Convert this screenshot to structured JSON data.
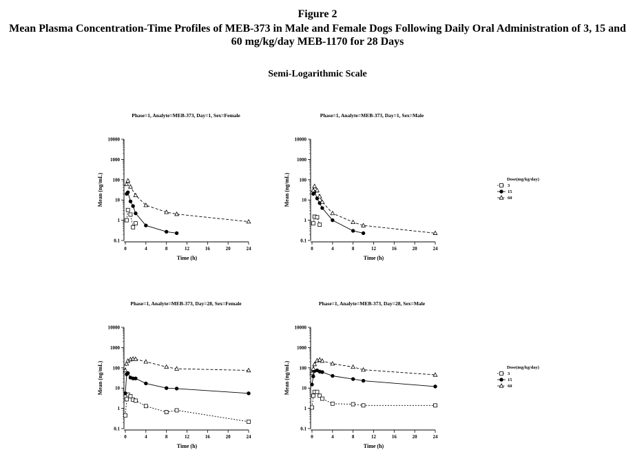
{
  "figure": {
    "number": "Figure 2",
    "title": "Mean Plasma Concentration-Time Profiles of MEB-373 in Male and Female Dogs Following Daily Oral Administration of 3, 15 and 60 mg/kg/day MEB-1170 for 28 Days",
    "subtitle": "Semi-Logarithmic Scale"
  },
  "legend": {
    "title": "Dose(mg/kg/day)",
    "entries": [
      {
        "label": "3",
        "marker": "square-open",
        "dash": "short"
      },
      {
        "label": "15",
        "marker": "circle-filled",
        "dash": "solid"
      },
      {
        "label": "60",
        "marker": "triangle-open",
        "dash": "dashed"
      }
    ]
  },
  "chart_data": [
    {
      "type": "line",
      "title": "Phase=1, Analyte=MEB-373, Day=1, Sex=Female",
      "xlabel": "Time (h)",
      "ylabel": "Mean (ng/mL)",
      "yscale": "log",
      "xlim": [
        0,
        24
      ],
      "ylim": [
        0.1,
        10000
      ],
      "xticks": [
        "0",
        "4",
        "8",
        "12",
        "16",
        "20",
        "24"
      ],
      "yticks": [
        "0.1",
        "1",
        "10",
        "100",
        "1000",
        "10000"
      ],
      "series": [
        {
          "name": "3",
          "x": [
            0.25,
            0.5,
            1,
            1.5,
            2
          ],
          "y": [
            1.0,
            3.2,
            1.9,
            0.45,
            0.7
          ]
        },
        {
          "name": "15",
          "x": [
            0.25,
            0.5,
            1,
            1.5,
            2,
            4,
            8,
            10
          ],
          "y": [
            20,
            24,
            8.5,
            5,
            2.2,
            0.55,
            0.27,
            0.23
          ]
        },
        {
          "name": "60",
          "x": [
            0.25,
            0.5,
            1,
            2,
            4,
            8,
            10,
            24
          ],
          "y": [
            60,
            90,
            45,
            17,
            5.5,
            2.5,
            2.0,
            0.85
          ]
        }
      ]
    },
    {
      "type": "line",
      "title": "Phase=1, Analyte=MEB-373, Day=1, Sex=Male",
      "xlabel": "Time (h)",
      "ylabel": "Mean (ng/mL)",
      "yscale": "log",
      "xlim": [
        0,
        24
      ],
      "ylim": [
        0.1,
        10000
      ],
      "xticks": [
        "0",
        "4",
        "8",
        "12",
        "16",
        "20",
        "24"
      ],
      "yticks": [
        "0.1",
        "1",
        "10",
        "100",
        "1000",
        "10000"
      ],
      "series": [
        {
          "name": "3",
          "x": [
            0.25,
            0.5,
            1,
            1.5
          ],
          "y": [
            0.7,
            1.5,
            1.4,
            0.6
          ]
        },
        {
          "name": "15",
          "x": [
            0.25,
            0.5,
            1,
            1.5,
            2,
            4,
            8,
            10
          ],
          "y": [
            20,
            25,
            12,
            7,
            4,
            1.0,
            0.3,
            0.23
          ]
        },
        {
          "name": "60",
          "x": [
            0.25,
            0.5,
            1,
            1.5,
            2,
            4,
            8,
            10,
            24
          ],
          "y": [
            30,
            48,
            30,
            15,
            8,
            2.2,
            0.8,
            0.55,
            0.23
          ]
        }
      ]
    },
    {
      "type": "line",
      "title": "Phase=1, Analyte=MEB-373, Day=28, Sex=Female",
      "xlabel": "Time (h)",
      "ylabel": "Mean (ng/mL)",
      "yscale": "log",
      "xlim": [
        0,
        24
      ],
      "ylim": [
        0.1,
        10000
      ],
      "xticks": [
        "0",
        "4",
        "8",
        "12",
        "16",
        "20",
        "24"
      ],
      "yticks": [
        "0.1",
        "1",
        "10",
        "100",
        "1000",
        "10000"
      ],
      "series": [
        {
          "name": "3",
          "x": [
            0,
            0.25,
            0.5,
            1,
            1.5,
            2,
            4,
            8,
            10,
            24
          ],
          "y": [
            0.45,
            2.8,
            4.8,
            4.0,
            2.7,
            2.4,
            1.3,
            0.65,
            0.8,
            0.22
          ]
        },
        {
          "name": "15",
          "x": [
            0,
            0.25,
            0.5,
            1,
            1.5,
            2,
            4,
            8,
            10,
            24
          ],
          "y": [
            5.5,
            48,
            55,
            33,
            30,
            30,
            17,
            10,
            9.5,
            5.5
          ]
        },
        {
          "name": "60",
          "x": [
            0,
            0.25,
            0.5,
            1,
            1.5,
            2,
            4,
            8,
            10,
            24
          ],
          "y": [
            75,
            160,
            220,
            260,
            280,
            270,
            200,
            110,
            90,
            75
          ]
        }
      ]
    },
    {
      "type": "line",
      "title": "Phase=1, Analyte=MEB-373, Day=28, Sex=Male",
      "xlabel": "Time (h)",
      "ylabel": "Mean (ng/mL)",
      "yscale": "log",
      "xlim": [
        0,
        24
      ],
      "ylim": [
        0.1,
        10000
      ],
      "xticks": [
        "0",
        "4",
        "8",
        "12",
        "16",
        "20",
        "24"
      ],
      "yticks": [
        "0.1",
        "1",
        "10",
        "100",
        "1000",
        "10000"
      ],
      "series": [
        {
          "name": "3",
          "x": [
            0,
            0.25,
            0.5,
            1,
            1.5,
            2,
            4,
            8,
            10,
            24
          ],
          "y": [
            1.1,
            4.2,
            6.5,
            6.5,
            4.2,
            3.0,
            1.7,
            1.6,
            1.4,
            1.4
          ]
        },
        {
          "name": "15",
          "x": [
            0,
            0.25,
            0.5,
            1,
            1.5,
            2,
            4,
            8,
            10,
            24
          ],
          "y": [
            15,
            38,
            70,
            75,
            65,
            62,
            40,
            28,
            23,
            12
          ]
        },
        {
          "name": "60",
          "x": [
            0,
            0.25,
            0.5,
            1,
            1.5,
            2,
            4,
            8,
            10,
            24
          ],
          "y": [
            55,
            90,
            150,
            230,
            250,
            220,
            160,
            110,
            80,
            45
          ]
        }
      ]
    }
  ]
}
